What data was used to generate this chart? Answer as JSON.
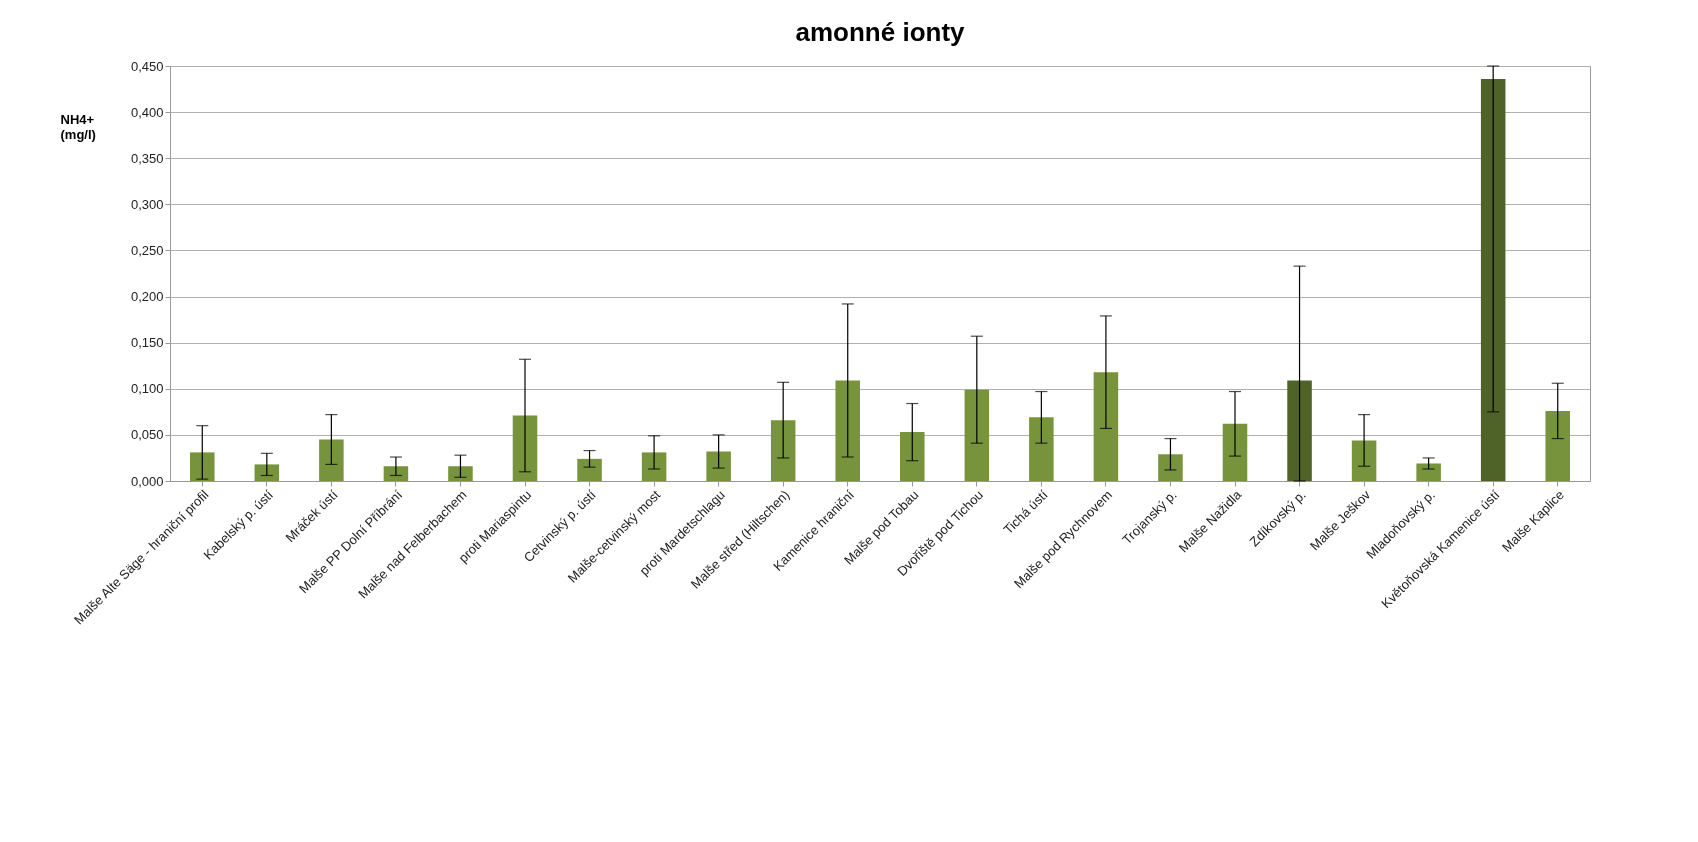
{
  "chart_data": {
    "type": "bar",
    "title": "amonné ionty",
    "ylabel": "NH4+\n(mg/l)",
    "categories": [
      "Malše Alte Säge - hraniční profil",
      "Kabelský p. ústí",
      "Mráček ústí",
      "Malše PP Dolní Příbrání",
      "Malše nad Felberbachem",
      "proti Mariaspintu",
      "Cetvinský p. ústí",
      "Malše-cetvinský most",
      "proti Mardetschlagu",
      "Malše střed (Hiltschen)",
      "Kamenice hraniční",
      "Malše pod Tobau",
      "Dvořiště pod  Tichou",
      "Tichá ústí",
      "Malše pod Rychnovem",
      "Trojanský p.",
      "Malše Nažidla",
      "Zdíkovský p.",
      "Malše Ješkov",
      "Mladoňovský p.",
      "Květoňovská Kamenice ústí",
      "Malše Kaplice"
    ],
    "values": [
      0.031,
      0.018,
      0.045,
      0.016,
      0.016,
      0.071,
      0.024,
      0.031,
      0.032,
      0.066,
      0.109,
      0.053,
      0.099,
      0.069,
      0.118,
      0.029,
      0.062,
      0.109,
      0.044,
      0.019,
      0.436,
      0.076
    ],
    "colors": [
      "#77933c",
      "#77933c",
      "#77933c",
      "#77933c",
      "#77933c",
      "#77933c",
      "#77933c",
      "#77933c",
      "#77933c",
      "#77933c",
      "#77933c",
      "#77933c",
      "#77933c",
      "#77933c",
      "#77933c",
      "#77933c",
      "#77933c",
      "#4f6228",
      "#77933c",
      "#77933c",
      "#4f6228",
      "#77933c"
    ],
    "errors": [
      0.029,
      0.012,
      0.027,
      0.01,
      0.012,
      0.061,
      0.009,
      0.018,
      0.018,
      0.041,
      0.083,
      0.031,
      0.058,
      0.028,
      0.061,
      0.017,
      0.035,
      [
        0.0,
        0.233
      ],
      0.028,
      0.006,
      [
        0.075,
        0.45
      ],
      0.03
    ],
    "ylim": [
      0,
      0.45
    ],
    "yticks": [
      {
        "value": 0,
        "label": "0,000"
      },
      {
        "value": 0.05,
        "label": "0,050"
      },
      {
        "value": 0.1,
        "label": "0,100"
      },
      {
        "value": 0.15,
        "label": "0,150"
      },
      {
        "value": 0.2,
        "label": "0,200"
      },
      {
        "value": 0.25,
        "label": "0,250"
      },
      {
        "value": 0.3,
        "label": "0,300"
      },
      {
        "value": 0.35,
        "label": "0,350"
      },
      {
        "value": 0.4,
        "label": "0,400"
      },
      {
        "value": 0.45,
        "label": "0,450"
      }
    ],
    "grid": "y"
  }
}
